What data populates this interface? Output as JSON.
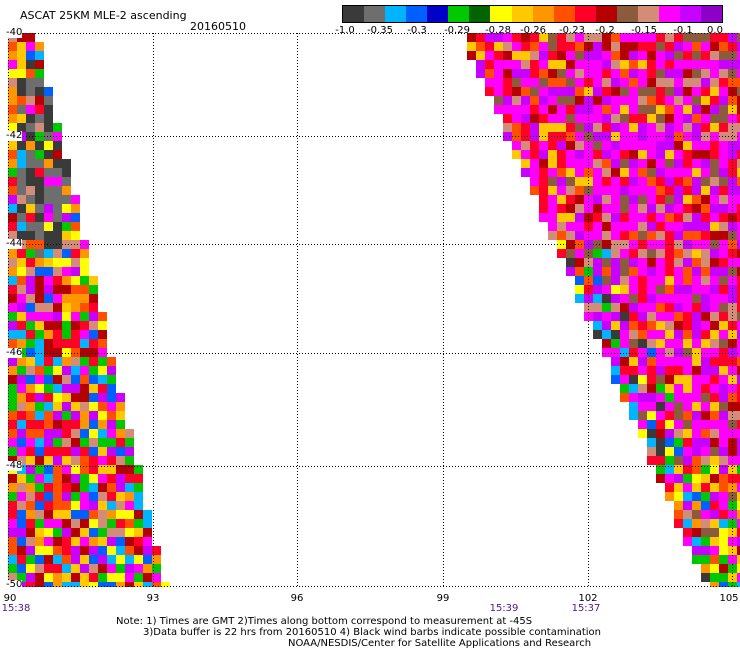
{
  "header": {
    "title": "ASCAT 25KM MLE-2 ascending",
    "date": "20160510"
  },
  "colorbar": {
    "labels": [
      "-1.0",
      "-0.35",
      "-0.3",
      "-0.29",
      "-0.28",
      "-0.26",
      "-0.23",
      "-0.2",
      "-0.15",
      "-0.1",
      "0.0"
    ],
    "colors": [
      "#3a3a3a",
      "#6e6e6e",
      "#00b4ff",
      "#0060ff",
      "#0000c8",
      "#00c800",
      "#006400",
      "#ffff00",
      "#ffc800",
      "#ff9600",
      "#ff5000",
      "#ff0028",
      "#b40000",
      "#8c5a3c",
      "#d28c78",
      "#ff00ff",
      "#c800ff",
      "#8c00c8"
    ]
  },
  "axes": {
    "y_ticks": [
      "-40",
      "-42",
      "-44",
      "-46",
      "-48",
      "-50"
    ],
    "x_ticks": [
      "90",
      "93",
      "96",
      "99",
      "102",
      "105"
    ],
    "times": [
      "15:38",
      "15:39",
      "15:37"
    ]
  },
  "notes": {
    "line1": "Note: 1) Times are GMT 2)Times along bottom correspond to measurement at -45S",
    "line2": "3)Data buffer is 22 hrs from 20160510 4) Black wind barbs indicate possible contamination",
    "line3": "NOAA/NESDIS/Center for Satellite Applications and Research"
  }
}
